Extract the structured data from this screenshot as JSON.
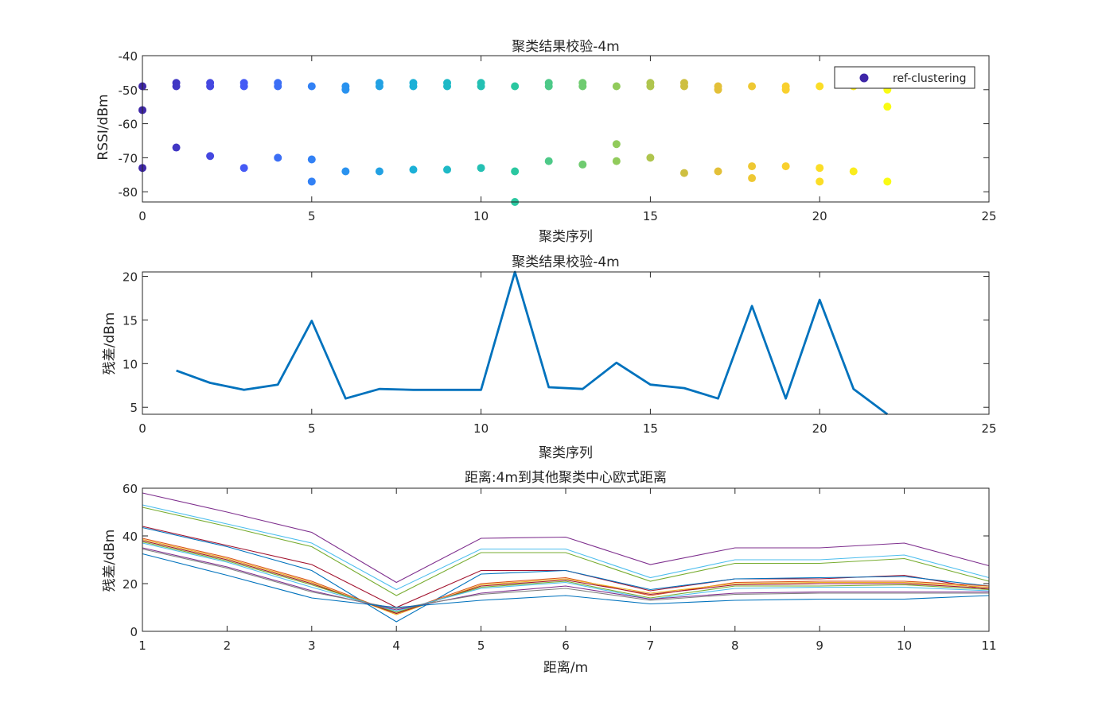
{
  "chart_data": [
    {
      "type": "scatter",
      "title": "聚类结果校验-4m",
      "xlabel": "聚类序列",
      "ylabel": "RSSI/dBm",
      "xlim": [
        0,
        25
      ],
      "ylim": [
        -83,
        -40
      ],
      "xticks": [
        0,
        5,
        10,
        15,
        20,
        25
      ],
      "yticks": [
        -40,
        -50,
        -60,
        -70,
        -80
      ],
      "xtick_labels": [
        "0",
        "5",
        "10",
        "15",
        "20",
        "25"
      ],
      "ytick_labels": [
        "-40",
        "-50",
        "-60",
        "-70",
        "-80"
      ],
      "legend": {
        "label": "ref-clustering",
        "position": "top-right"
      },
      "colormap": "parula",
      "points": [
        [
          0,
          -49
        ],
        [
          0,
          -56
        ],
        [
          0,
          -73
        ],
        [
          1,
          -48
        ],
        [
          1,
          -49
        ],
        [
          1,
          -67
        ],
        [
          2,
          -48
        ],
        [
          2,
          -49
        ],
        [
          2,
          -69.5
        ],
        [
          3,
          -48
        ],
        [
          3,
          -49
        ],
        [
          3,
          -73
        ],
        [
          4,
          -48
        ],
        [
          4,
          -49
        ],
        [
          4,
          -70
        ],
        [
          5,
          -49
        ],
        [
          5,
          -70.5
        ],
        [
          5,
          -77
        ],
        [
          6,
          -49
        ],
        [
          6,
          -50
        ],
        [
          6,
          -74
        ],
        [
          7,
          -48
        ],
        [
          7,
          -49
        ],
        [
          7,
          -74
        ],
        [
          8,
          -48
        ],
        [
          8,
          -49
        ],
        [
          8,
          -73.5
        ],
        [
          9,
          -48
        ],
        [
          9,
          -49
        ],
        [
          9,
          -73.5
        ],
        [
          10,
          -48
        ],
        [
          10,
          -49
        ],
        [
          10,
          -73
        ],
        [
          11,
          -49
        ],
        [
          11,
          -74
        ],
        [
          11,
          -83
        ],
        [
          12,
          -48
        ],
        [
          12,
          -49
        ],
        [
          12,
          -71
        ],
        [
          13,
          -48
        ],
        [
          13,
          -49
        ],
        [
          13,
          -72
        ],
        [
          14,
          -49
        ],
        [
          14,
          -66
        ],
        [
          14,
          -71
        ],
        [
          15,
          -48
        ],
        [
          15,
          -49
        ],
        [
          15,
          -70
        ],
        [
          16,
          -48
        ],
        [
          16,
          -49
        ],
        [
          16,
          -74.5
        ],
        [
          17,
          -49
        ],
        [
          17,
          -50
        ],
        [
          17,
          -74
        ],
        [
          18,
          -49
        ],
        [
          18,
          -72.5
        ],
        [
          18,
          -76
        ],
        [
          19,
          -49
        ],
        [
          19,
          -50
        ],
        [
          19,
          -72.5
        ],
        [
          20,
          -49
        ],
        [
          20,
          -73
        ],
        [
          20,
          -77
        ],
        [
          21,
          -49
        ],
        [
          21,
          -74
        ],
        [
          22,
          -50
        ],
        [
          22,
          -55
        ],
        [
          22,
          -77
        ]
      ]
    },
    {
      "type": "line",
      "title": "聚类结果校验-4m",
      "xlabel": "聚类序列",
      "ylabel": "残差/dBm",
      "xlim": [
        0,
        25
      ],
      "ylim": [
        4.2,
        20.5
      ],
      "xticks": [
        0,
        5,
        10,
        15,
        20,
        25
      ],
      "yticks": [
        5,
        10,
        15,
        20
      ],
      "xtick_labels": [
        "0",
        "5",
        "10",
        "15",
        "20",
        "25"
      ],
      "ytick_labels": [
        "5",
        "10",
        "15",
        "20"
      ],
      "color": "#0072BD",
      "x": [
        1,
        2,
        3,
        4,
        5,
        6,
        7,
        8,
        9,
        10,
        11,
        12,
        13,
        14,
        15,
        16,
        17,
        18,
        19,
        20,
        21,
        22
      ],
      "y": [
        9.2,
        7.8,
        7.0,
        7.6,
        14.9,
        6.0,
        7.1,
        7.0,
        7.0,
        7.0,
        20.5,
        7.3,
        7.1,
        10.1,
        7.6,
        7.2,
        6.0,
        16.6,
        6.0,
        17.3,
        7.1,
        4.2
      ]
    },
    {
      "type": "line",
      "title": "距离:4m到其他聚类中心欧式距离",
      "xlabel": "距离/m",
      "ylabel": "残差/dBm",
      "xlim": [
        1,
        11
      ],
      "ylim": [
        0,
        60
      ],
      "xticks": [
        1,
        2,
        3,
        4,
        5,
        6,
        7,
        8,
        9,
        10,
        11
      ],
      "yticks": [
        0,
        20,
        40,
        60
      ],
      "xtick_labels": [
        "1",
        "2",
        "3",
        "4",
        "5",
        "6",
        "7",
        "8",
        "9",
        "10",
        "11"
      ],
      "ytick_labels": [
        "0",
        "20",
        "40",
        "60"
      ],
      "x": [
        1,
        2,
        3,
        4,
        5,
        6,
        7,
        8,
        9,
        10,
        11
      ],
      "series": [
        {
          "color": "#7E2F8E",
          "values": [
            58,
            50,
            41.5,
            20.5,
            39,
            39.5,
            28,
            35,
            35,
            37,
            27.5
          ]
        },
        {
          "color": "#4DBEEE",
          "values": [
            53,
            45,
            37,
            17.5,
            34.5,
            34.5,
            22.5,
            30,
            30,
            32,
            22.5
          ]
        },
        {
          "color": "#77AC30",
          "values": [
            52,
            44,
            35.5,
            15,
            33,
            33,
            21,
            28.5,
            28.5,
            30.5,
            21
          ]
        },
        {
          "color": "#A2142F",
          "values": [
            44,
            36,
            28,
            10,
            25.5,
            25.5,
            17,
            22,
            22,
            23.5,
            17.5
          ]
        },
        {
          "color": "#0072BD",
          "values": [
            43.5,
            35.5,
            25.5,
            4,
            24,
            25.5,
            17.5,
            22,
            22.5,
            23,
            19
          ]
        },
        {
          "color": "#D95319",
          "values": [
            39,
            31,
            21,
            7.5,
            20,
            22.5,
            15,
            20.5,
            21,
            21,
            19
          ]
        },
        {
          "color": "#EDB120",
          "values": [
            38.5,
            30.5,
            20.5,
            7,
            19.5,
            22,
            16,
            20,
            20.5,
            20.5,
            18.5
          ]
        },
        {
          "color": "#A2142F",
          "values": [
            38,
            30,
            20,
            7.5,
            19,
            21.5,
            15.5,
            19.5,
            20,
            20,
            18
          ]
        },
        {
          "color": "#77AC30",
          "values": [
            37.5,
            29.5,
            19.5,
            8,
            18.5,
            21,
            14,
            19,
            19,
            19.5,
            17.5
          ]
        },
        {
          "color": "#4DBEEE",
          "values": [
            37,
            29,
            18.5,
            8.5,
            18,
            20.5,
            13.5,
            18,
            18.5,
            18.5,
            17
          ]
        },
        {
          "color": "#7E2F8E",
          "values": [
            35,
            27,
            17,
            9,
            16,
            19,
            13.5,
            16,
            16.5,
            16.5,
            16.5
          ]
        },
        {
          "color": "#808080",
          "values": [
            34.5,
            26.5,
            16.5,
            9.5,
            15.5,
            18,
            13,
            15.5,
            16,
            16,
            16
          ]
        },
        {
          "color": "#0072BD",
          "values": [
            32.5,
            23.5,
            14,
            10,
            13,
            15,
            11.5,
            13,
            13.5,
            13.5,
            15
          ]
        }
      ]
    }
  ]
}
